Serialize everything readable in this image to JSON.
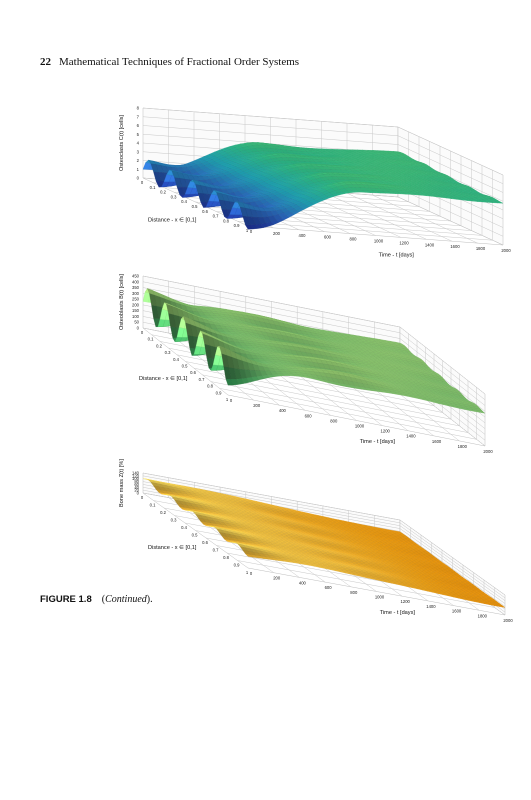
{
  "header": {
    "page_number": "22",
    "title": "Mathematical Techniques of Fractional Order Systems"
  },
  "caption": {
    "label": "FIGURE 1.8",
    "text_open": "(",
    "text_italic": "Continued",
    "text_close": ")."
  },
  "chart_data": [
    {
      "type": "surface",
      "zlabel": "Osteoclasts C(t) [cells]",
      "xlabel": "Distance - x ∈ [0,1]",
      "ylabel": "Time - t [days]",
      "x_ticks": [
        "0",
        "0.1",
        "0.2",
        "0.3",
        "0.4",
        "0.5",
        "0.6",
        "0.7",
        "0.8",
        "0.9",
        "1"
      ],
      "t_ticks": [
        "0",
        "200",
        "400",
        "600",
        "800",
        "1000",
        "1200",
        "1400",
        "1600",
        "1800",
        "2000"
      ],
      "z_ticks": [
        "0",
        "1",
        "2",
        "3",
        "4",
        "5",
        "6",
        "7",
        "8"
      ],
      "zlim": [
        0,
        8
      ],
      "colors": [
        "#1d2f9a",
        "#2d6ec8",
        "#1fa6b7",
        "#2fbf8a",
        "#5fd36b"
      ],
      "z_base": 1,
      "z_plateau": 5,
      "osc_amp": 1.3,
      "rise_start_days": 100,
      "rise_end_days": 900
    },
    {
      "type": "surface",
      "zlabel": "Osteoblasts B(t) [cells]",
      "xlabel": "Distance - x ∈ [0,1]",
      "ylabel": "Time - t [days]",
      "x_ticks": [
        "0",
        "0.1",
        "0.2",
        "0.3",
        "0.4",
        "0.5",
        "0.6",
        "0.7",
        "0.8",
        "0.9",
        "1"
      ],
      "t_ticks": [
        "0",
        "200",
        "400",
        "600",
        "800",
        "1000",
        "1200",
        "1400",
        "1600",
        "1800",
        "2000"
      ],
      "z_ticks": [
        "0",
        "50",
        "100",
        "150",
        "200",
        "250",
        "300",
        "350",
        "400",
        "450"
      ],
      "zlim": [
        0,
        450
      ],
      "colors": [
        "#2f9a55",
        "#5fb66a",
        "#94cf72",
        "#c4e07c"
      ],
      "z_base": 230,
      "z_plateau": 300,
      "osc_amp": 140,
      "rise_start_days": 0,
      "rise_end_days": 700
    },
    {
      "type": "surface",
      "zlabel": "Bone mass Z(t) [%]",
      "xlabel": "Distance - x ∈ [0,1]",
      "ylabel": "Time - t [days]",
      "x_ticks": [
        "0",
        "0.1",
        "0.2",
        "0.3",
        "0.4",
        "0.5",
        "0.6",
        "0.7",
        "0.8",
        "0.9",
        "1"
      ],
      "t_ticks": [
        "0",
        "200",
        "400",
        "600",
        "800",
        "1000",
        "1200",
        "1400",
        "1600",
        "1800",
        "2000"
      ],
      "z_ticks": [
        "0",
        "20",
        "40",
        "60",
        "80",
        "100",
        "120",
        "140"
      ],
      "zlim": [
        0,
        140
      ],
      "colors": [
        "#f08a00",
        "#f6a514",
        "#fbc23a",
        "#fde05c"
      ],
      "z_base": 100,
      "z_plateau": 55,
      "osc_amp": 18,
      "rise_start_days": 300,
      "rise_end_days": 2000
    }
  ]
}
